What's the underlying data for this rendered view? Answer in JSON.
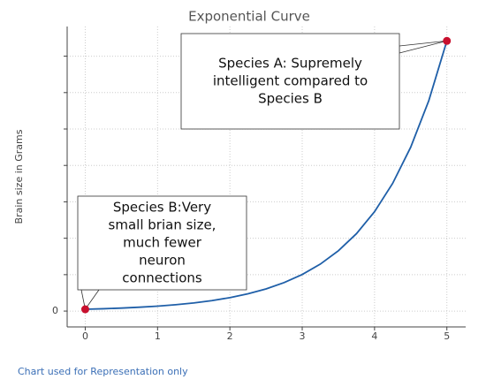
{
  "chart_data": {
    "type": "line",
    "title": "Exponential Curve",
    "y_label": "Brain size in Grams",
    "caption": "Chart used for Representation only",
    "x": [
      0,
      0.25,
      0.5,
      0.75,
      1,
      1.25,
      1.5,
      1.75,
      2,
      2.25,
      2.5,
      2.75,
      3,
      3.25,
      3.5,
      3.75,
      4,
      4.25,
      4.5,
      4.75,
      5
    ],
    "values": [
      1,
      1.28,
      1.65,
      2.12,
      2.72,
      3.49,
      4.48,
      5.75,
      7.39,
      9.49,
      12.18,
      15.64,
      20.09,
      25.79,
      33.12,
      42.52,
      54.6,
      70.11,
      90.02,
      115.58,
      148.41
    ],
    "color": "#1f5fa8",
    "markers": {
      "x": [
        0,
        5
      ],
      "values": [
        1,
        148.41
      ],
      "color": "#c8102e"
    },
    "annotations": [
      {
        "lines": [
          "Species B:Very",
          "small brian size,",
          "much fewer",
          "neuron",
          "connections"
        ]
      },
      {
        "lines": [
          "Species A: Supremely",
          "intelligent compared to",
          "Species B"
        ]
      }
    ],
    "xlim": [
      -0.25,
      5.26
    ],
    "xticks": [
      0,
      1,
      2,
      3,
      4,
      5
    ],
    "ylim": [
      -8.7,
      156.3
    ],
    "yticks": [
      0,
      {
        "value": 20,
        "label": null
      },
      {
        "value": 40,
        "label": null
      },
      {
        "value": 60,
        "label": null
      },
      {
        "value": 80,
        "label": null
      },
      {
        "value": 100,
        "label": null
      },
      {
        "value": 120,
        "label": null
      },
      {
        "value": 140,
        "label": null
      }
    ],
    "grid": true
  }
}
